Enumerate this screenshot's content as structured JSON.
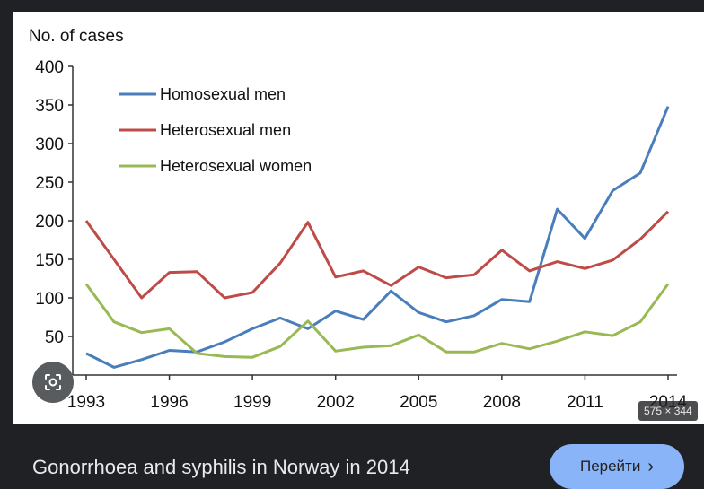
{
  "viewer": {
    "caption": "Gonorrhoea and syphilis in Norway in 2014",
    "visit_button_label": "Перейти",
    "dimensions_badge": "575 × 344",
    "visit_icon": "chevron-right-icon",
    "lens_icon": "google-lens-icon"
  },
  "chart_data": {
    "type": "line",
    "ylabel": "No. of cases",
    "xlabel": "",
    "x": [
      1993,
      1994,
      1995,
      1996,
      1997,
      1998,
      1999,
      2000,
      2001,
      2002,
      2003,
      2004,
      2005,
      2006,
      2007,
      2008,
      2009,
      2010,
      2011,
      2012,
      2013,
      2014
    ],
    "x_ticks": [
      "1993",
      "1996",
      "1999",
      "2002",
      "2005",
      "2008",
      "2011",
      "2014"
    ],
    "y_ticks": [
      "50",
      "100",
      "150",
      "200",
      "250",
      "300",
      "350",
      "400"
    ],
    "ylim": [
      0,
      400
    ],
    "grid": false,
    "legend_position": "top-left",
    "series": [
      {
        "name": "Homosexual men",
        "color": "#4a7ebb",
        "values": [
          28,
          10,
          20,
          32,
          30,
          43,
          60,
          74,
          60,
          83,
          72,
          109,
          81,
          69,
          77,
          98,
          95,
          215,
          177,
          239,
          262,
          348
        ]
      },
      {
        "name": "Heterosexual men",
        "color": "#be4b48",
        "values": [
          200,
          150,
          100,
          133,
          134,
          100,
          107,
          145,
          198,
          127,
          135,
          116,
          140,
          126,
          130,
          162,
          135,
          147,
          138,
          149,
          176,
          212
        ]
      },
      {
        "name": "Heterosexual women",
        "color": "#98b954",
        "values": [
          118,
          69,
          55,
          60,
          28,
          24,
          23,
          37,
          70,
          31,
          36,
          38,
          52,
          30,
          30,
          41,
          34,
          44,
          56,
          51,
          69,
          118
        ]
      }
    ]
  }
}
